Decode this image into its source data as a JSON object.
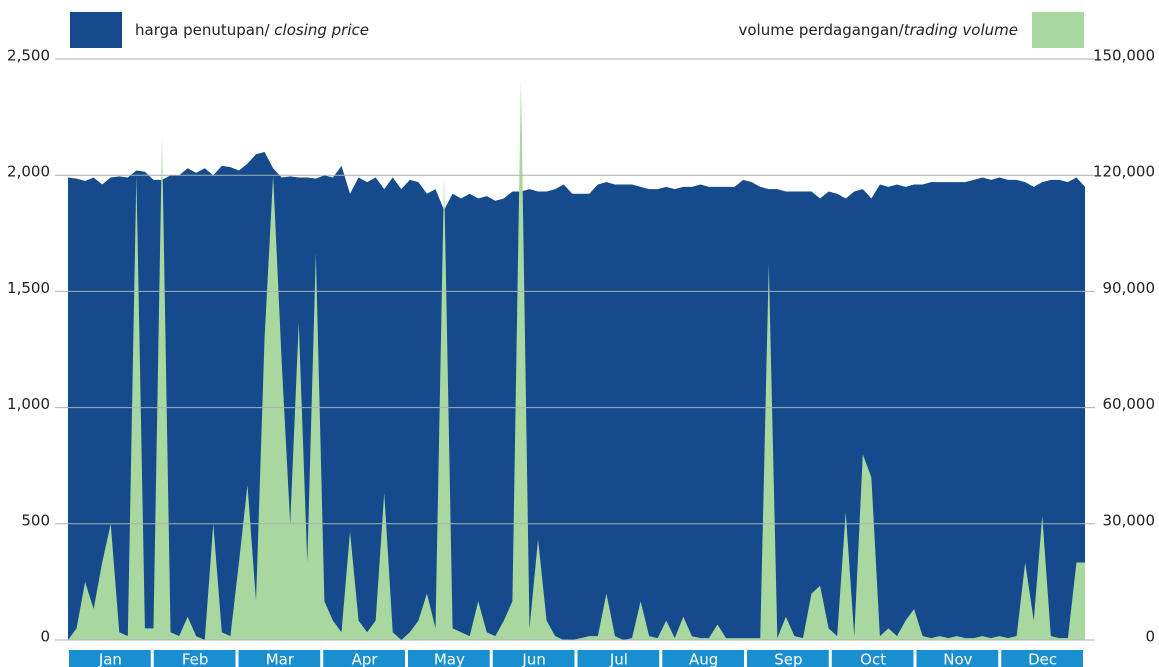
{
  "chart_data": {
    "type": "area",
    "legend": {
      "price_label": "harga penutupan/ ",
      "price_label_italic": "closing price",
      "volume_label": "volume perdagangan/",
      "volume_label_italic": "trading volume"
    },
    "x_labels": [
      "Jan",
      "Feb",
      "Mar",
      "Apr",
      "May",
      "Jun",
      "Jul",
      "Aug",
      "Sep",
      "Oct",
      "Nov",
      "Dec"
    ],
    "month_color": "#1a8fd0",
    "ylim": [
      0,
      2500
    ],
    "yticks": [
      0,
      500,
      {
        "value": 1000,
        "label": "1,000"
      },
      {
        "value": 1500,
        "label": "1,500"
      },
      {
        "value": 2000,
        "label": "2,000"
      },
      {
        "value": 2500,
        "label": "2,500"
      }
    ],
    "y2lim": [
      0,
      150000
    ],
    "y2ticks": [
      0,
      {
        "value": 30000,
        "label": "30,000"
      },
      {
        "value": 60000,
        "label": "60,000"
      },
      {
        "value": 90000,
        "label": "90,000"
      },
      {
        "value": 120000,
        "label": "120,000"
      },
      {
        "value": 150000,
        "label": "150,000"
      }
    ],
    "grid": true,
    "series": [
      {
        "name": "closing price",
        "color": "#154a8c",
        "values": [
          1990,
          1985,
          1975,
          1990,
          1960,
          1990,
          1995,
          1990,
          2020,
          2015,
          1980,
          1980,
          2000,
          2000,
          2030,
          2010,
          2030,
          2000,
          2040,
          2035,
          2020,
          2050,
          2090,
          2100,
          2030,
          1990,
          1995,
          1990,
          1990,
          1985,
          2000,
          1990,
          2040,
          1920,
          1990,
          1970,
          1990,
          1940,
          1990,
          1940,
          1980,
          1970,
          1920,
          1940,
          1850,
          1920,
          1900,
          1920,
          1900,
          1910,
          1890,
          1900,
          1930,
          1930,
          1940,
          1930,
          1930,
          1940,
          1960,
          1920,
          1920,
          1920,
          1960,
          1970,
          1960,
          1960,
          1960,
          1950,
          1940,
          1940,
          1950,
          1940,
          1950,
          1950,
          1960,
          1950,
          1950,
          1950,
          1950,
          1980,
          1970,
          1950,
          1940,
          1940,
          1930,
          1930,
          1930,
          1930,
          1900,
          1930,
          1920,
          1900,
          1930,
          1940,
          1900,
          1960,
          1950,
          1960,
          1950,
          1960,
          1960,
          1970,
          1970,
          1970,
          1970,
          1970,
          1980,
          1990,
          1980,
          1990,
          1980,
          1980,
          1970,
          1950,
          1970,
          1980,
          1980,
          1970,
          1990,
          1950
        ]
      },
      {
        "name": "trading volume",
        "color": "#a8d8a0",
        "axis": "y2",
        "values": [
          0,
          3000,
          15000,
          8000,
          20000,
          30000,
          2000,
          1000,
          120000,
          3000,
          3000,
          130000,
          2000,
          1000,
          6000,
          1000,
          0,
          30000,
          2000,
          1000,
          20000,
          40000,
          10000,
          78000,
          120000,
          72000,
          30000,
          82000,
          20000,
          100000,
          10000,
          5000,
          2000,
          28000,
          5000,
          2000,
          5000,
          38000,
          2000,
          0,
          2000,
          5000,
          12000,
          3000,
          120000,
          3000,
          2000,
          1000,
          10000,
          2000,
          1000,
          5000,
          10000,
          145000,
          3000,
          26000,
          5000,
          1000,
          0,
          0,
          500,
          1000,
          1000,
          12000,
          1000,
          0,
          500,
          10000,
          1000,
          500,
          5000,
          500,
          6000,
          1000,
          500,
          500,
          4000,
          500,
          500,
          500,
          500,
          500,
          97000,
          500,
          6000,
          1000,
          500,
          12000,
          14000,
          3000,
          1000,
          33000,
          1000,
          48000,
          42000,
          1000,
          3000,
          1000,
          5000,
          8000,
          1000,
          500,
          1000,
          500,
          1000,
          500,
          500,
          1000,
          500,
          1000,
          500,
          1000,
          20000,
          5000,
          32000,
          1000,
          500,
          500,
          20000,
          20000
        ]
      }
    ]
  }
}
